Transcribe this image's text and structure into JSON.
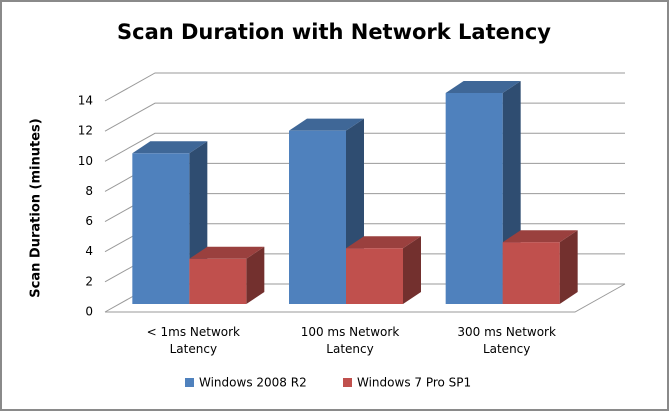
{
  "chart_data": {
    "type": "bar3d",
    "title": "Scan Duration with Network Latency",
    "y_label": "Scan Duration (minutes)",
    "categories": [
      "< 1ms Network Latency",
      "100 ms Network Latency",
      "300 ms Network Latency"
    ],
    "series": [
      {
        "name": "Windows 2008 R2",
        "color": "#4f81bd",
        "values": [
          10,
          11.5,
          14
        ]
      },
      {
        "name": "Windows 7 Pro SP1",
        "color": "#c0504d",
        "values": [
          3,
          3.7,
          4.1
        ]
      }
    ],
    "ylim": [
      0,
      14
    ],
    "yticks": [
      0,
      2,
      4,
      6,
      8,
      10,
      12,
      14
    ],
    "grid": true,
    "legend": "bottom"
  }
}
